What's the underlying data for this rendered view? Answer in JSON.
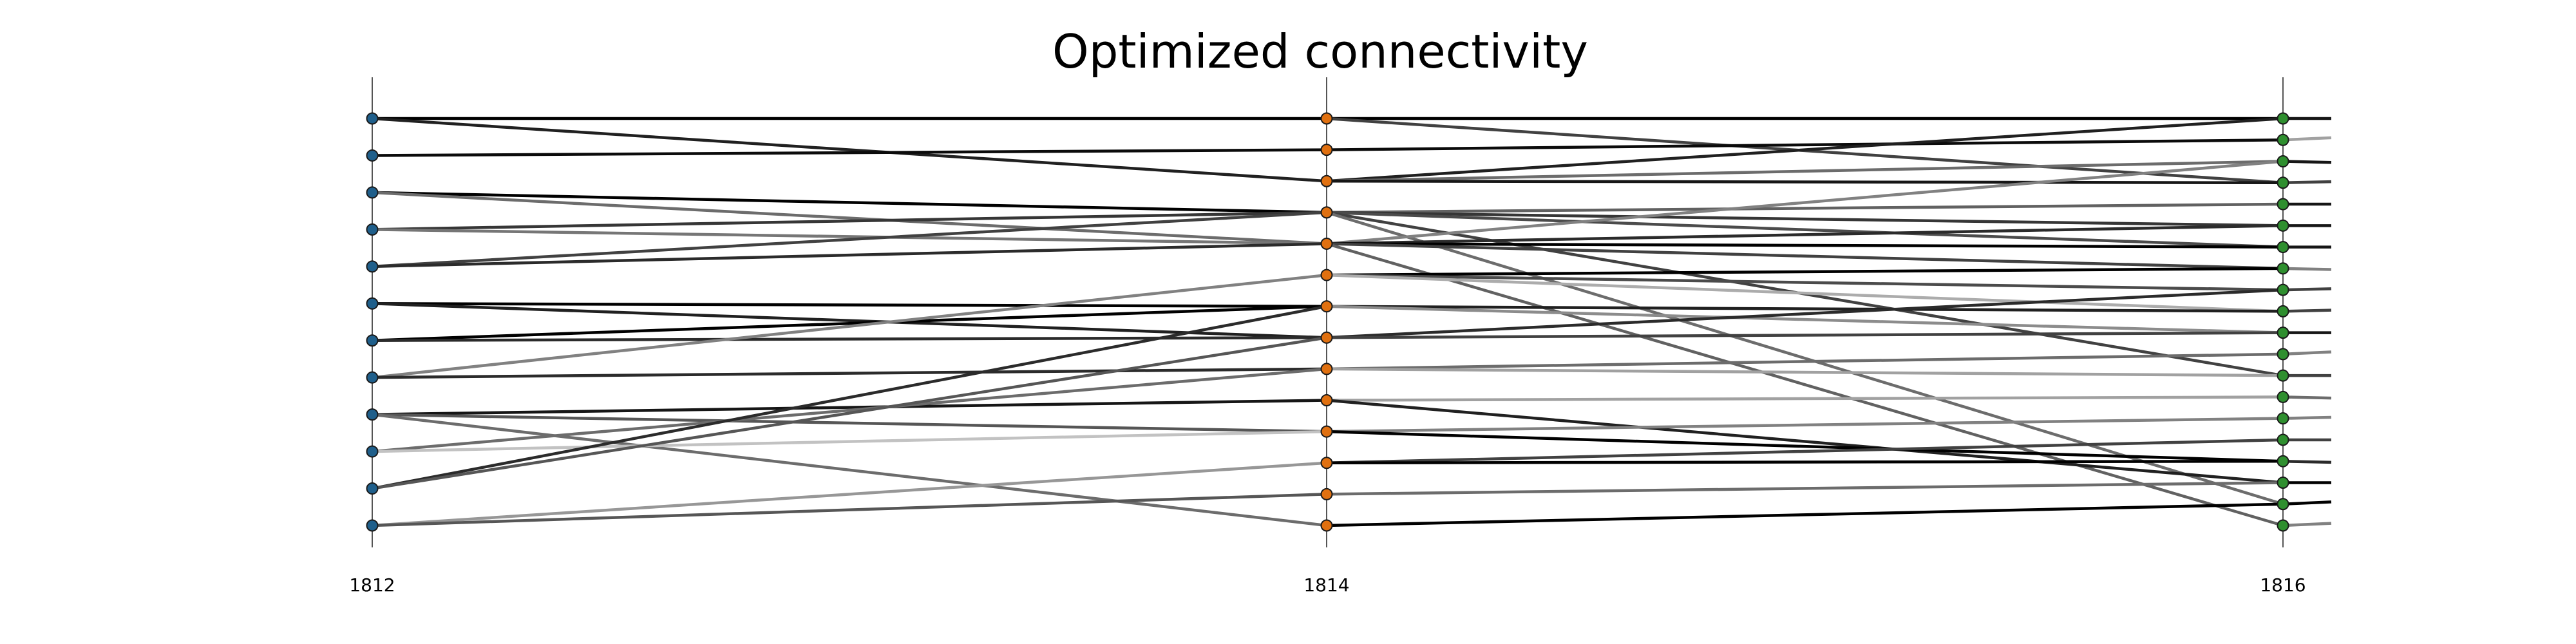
{
  "chart_data": {
    "type": "parallel-axis connectivity",
    "title": "Optimized connectivity",
    "axes": [
      {
        "label": "1812",
        "color": "#1f5f8b",
        "nodes": 12
      },
      {
        "label": "1814",
        "color": "#e07010",
        "nodes": 14
      },
      {
        "label": "1816",
        "color": "#2f8f2f",
        "nodes": 20
      }
    ],
    "edges_1812_1814": [
      {
        "from": 0,
        "to": 0,
        "shade": 0.0
      },
      {
        "from": 0,
        "to": 2,
        "shade": 0.15
      },
      {
        "from": 1,
        "to": 1,
        "shade": 0.05
      },
      {
        "from": 2,
        "to": 3,
        "shade": 0.0
      },
      {
        "from": 2,
        "to": 4,
        "shade": 0.5
      },
      {
        "from": 3,
        "to": 3,
        "shade": 0.25
      },
      {
        "from": 3,
        "to": 4,
        "shade": 0.55
      },
      {
        "from": 4,
        "to": 3,
        "shade": 0.3
      },
      {
        "from": 4,
        "to": 4,
        "shade": 0.2
      },
      {
        "from": 5,
        "to": 6,
        "shade": 0.0
      },
      {
        "from": 5,
        "to": 7,
        "shade": 0.15
      },
      {
        "from": 6,
        "to": 6,
        "shade": 0.0
      },
      {
        "from": 6,
        "to": 7,
        "shade": 0.2
      },
      {
        "from": 7,
        "to": 5,
        "shade": 0.6
      },
      {
        "from": 7,
        "to": 8,
        "shade": 0.2
      },
      {
        "from": 8,
        "to": 9,
        "shade": 0.1
      },
      {
        "from": 8,
        "to": 10,
        "shade": 0.4
      },
      {
        "from": 8,
        "to": 13,
        "shade": 0.5
      },
      {
        "from": 9,
        "to": 8,
        "shade": 0.5
      },
      {
        "from": 9,
        "to": 10,
        "shade": 0.9
      },
      {
        "from": 10,
        "to": 6,
        "shade": 0.2
      },
      {
        "from": 10,
        "to": 7,
        "shade": 0.4
      },
      {
        "from": 11,
        "to": 11,
        "shade": 0.7
      },
      {
        "from": 11,
        "to": 12,
        "shade": 0.4
      }
    ],
    "edges_1814_1816": [
      {
        "from": 0,
        "to": 0,
        "shade": 0.0
      },
      {
        "from": 0,
        "to": 3,
        "shade": 0.3
      },
      {
        "from": 1,
        "to": 1,
        "shade": 0.05
      },
      {
        "from": 2,
        "to": 0,
        "shade": 0.15
      },
      {
        "from": 2,
        "to": 2,
        "shade": 0.5
      },
      {
        "from": 2,
        "to": 3,
        "shade": 0.1
      },
      {
        "from": 3,
        "to": 4,
        "shade": 0.45
      },
      {
        "from": 3,
        "to": 5,
        "shade": 0.25
      },
      {
        "from": 3,
        "to": 6,
        "shade": 0.35
      },
      {
        "from": 3,
        "to": 12,
        "shade": 0.3
      },
      {
        "from": 3,
        "to": 18,
        "shade": 0.5
      },
      {
        "from": 4,
        "to": 2,
        "shade": 0.6
      },
      {
        "from": 4,
        "to": 5,
        "shade": 0.2
      },
      {
        "from": 4,
        "to": 6,
        "shade": 0.0
      },
      {
        "from": 4,
        "to": 7,
        "shade": 0.3
      },
      {
        "from": 4,
        "to": 19,
        "shade": 0.45
      },
      {
        "from": 5,
        "to": 7,
        "shade": 0.0
      },
      {
        "from": 5,
        "to": 8,
        "shade": 0.35
      },
      {
        "from": 5,
        "to": 9,
        "shade": 0.8
      },
      {
        "from": 6,
        "to": 9,
        "shade": 0.15
      },
      {
        "from": 6,
        "to": 10,
        "shade": 0.65
      },
      {
        "from": 7,
        "to": 8,
        "shade": 0.2
      },
      {
        "from": 7,
        "to": 10,
        "shade": 0.3
      },
      {
        "from": 8,
        "to": 11,
        "shade": 0.5
      },
      {
        "from": 8,
        "to": 12,
        "shade": 0.75
      },
      {
        "from": 9,
        "to": 13,
        "shade": 0.75
      },
      {
        "from": 9,
        "to": 17,
        "shade": 0.15
      },
      {
        "from": 10,
        "to": 14,
        "shade": 0.6
      },
      {
        "from": 10,
        "to": 16,
        "shade": 0.0
      },
      {
        "from": 11,
        "to": 15,
        "shade": 0.3
      },
      {
        "from": 11,
        "to": 16,
        "shade": 0.0
      },
      {
        "from": 12,
        "to": 17,
        "shade": 0.5
      },
      {
        "from": 13,
        "to": 18,
        "shade": 0.0
      }
    ],
    "edges_1816_beyond": [
      {
        "from": 0,
        "to": 0,
        "shade": 0.1
      },
      {
        "from": 1,
        "to": -1,
        "shade": 0.75
      },
      {
        "from": 2,
        "to": 3,
        "shade": 0.1
      },
      {
        "from": 3,
        "to": 2,
        "shade": 0.3
      },
      {
        "from": 4,
        "to": 4,
        "shade": 0.1
      },
      {
        "from": 5,
        "to": 5,
        "shade": 0.1
      },
      {
        "from": 6,
        "to": 6,
        "shade": 0.1
      },
      {
        "from": 7,
        "to": 8,
        "shade": 0.6
      },
      {
        "from": 8,
        "to": 7,
        "shade": 0.3
      },
      {
        "from": 9,
        "to": 8,
        "shade": 0.3
      },
      {
        "from": 10,
        "to": 10,
        "shade": 0.1
      },
      {
        "from": 11,
        "to": 9,
        "shade": 0.6
      },
      {
        "from": 12,
        "to": 12,
        "shade": 0.3
      },
      {
        "from": 13,
        "to": 14,
        "shade": 0.5
      },
      {
        "from": 14,
        "to": 13,
        "shade": 0.6
      },
      {
        "from": 15,
        "to": 15,
        "shade": 0.3
      },
      {
        "from": 16,
        "to": 17,
        "shade": 0.2
      },
      {
        "from": 17,
        "to": 17,
        "shade": 0.0
      },
      {
        "from": 18,
        "to": 16,
        "shade": 0.0
      },
      {
        "from": 19,
        "to": 17,
        "shade": 0.6
      }
    ],
    "x_ticks": [
      "1812",
      "1814",
      "1816"
    ],
    "legend": "none",
    "grid": false
  }
}
